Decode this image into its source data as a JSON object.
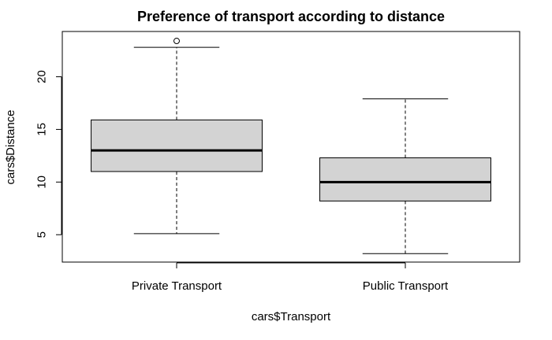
{
  "chart_data": {
    "type": "boxplot",
    "title": "Preference of transport according to distance",
    "xlabel": "cars$Transport",
    "ylabel": "cars$Distance",
    "categories": [
      "Private Transport",
      "Public Transport"
    ],
    "boxes": [
      {
        "category": "Private Transport",
        "whisker_low": 5.1,
        "q1": 11.0,
        "median": 13.0,
        "q3": 15.9,
        "whisker_high": 22.8,
        "outliers": [
          23.4
        ]
      },
      {
        "category": "Public Transport",
        "whisker_low": 3.2,
        "q1": 8.2,
        "median": 10.0,
        "q3": 12.3,
        "whisker_high": 17.9,
        "outliers": []
      }
    ],
    "y_ticks": [
      5,
      10,
      15,
      20
    ],
    "ylim": [
      2.4,
      24.3
    ],
    "box_fill": "#d3d3d3",
    "line_color": "#000000",
    "grid": false,
    "legend": "none"
  }
}
